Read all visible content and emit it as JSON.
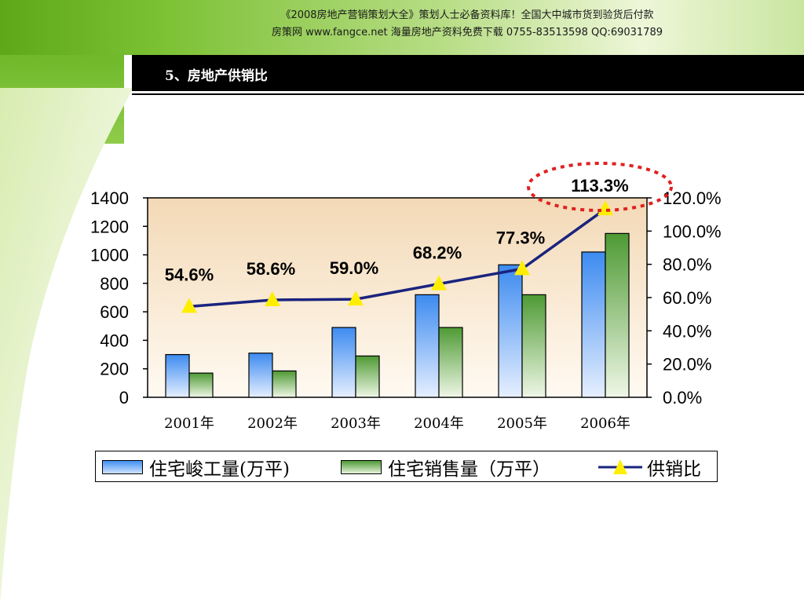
{
  "header": {
    "line1": "《2008房地产营销策划大全》策划人士必备资料库！全国大中城市货到验货后付款",
    "line2": "房策网 www.fangce.net 海量房地产资料免费下载  0755-83513598  QQ:69031789"
  },
  "slide": {
    "title": "5、房地产供销比"
  },
  "chart_data": {
    "type": "bar",
    "categories": [
      "2001年",
      "2002年",
      "2003年",
      "2004年",
      "2005年",
      "2006年"
    ],
    "series": [
      {
        "name": "住宅峻工量(万平)",
        "type": "bar",
        "axis": "left",
        "values": [
          300,
          310,
          490,
          720,
          930,
          1020
        ]
      },
      {
        "name": "住宅销售量（万平）",
        "type": "bar",
        "axis": "left",
        "values": [
          170,
          185,
          290,
          490,
          720,
          1150
        ]
      },
      {
        "name": "供销比",
        "type": "line",
        "axis": "right",
        "values": [
          0.546,
          0.586,
          0.59,
          0.682,
          0.773,
          1.133
        ],
        "data_labels": [
          "54.6%",
          "58.6%",
          "59.0%",
          "68.2%",
          "77.3%",
          "113.3%"
        ]
      }
    ],
    "left_axis": {
      "ylim": [
        0,
        1400
      ],
      "ticks": [
        "0",
        "200",
        "400",
        "600",
        "800",
        "1000",
        "1200",
        "1400"
      ]
    },
    "right_axis": {
      "ylim": [
        0,
        1.2
      ],
      "ticks": [
        "0.0%",
        "20.0%",
        "40.0%",
        "60.0%",
        "80.0%",
        "100.0%",
        "120.0%"
      ]
    },
    "legend_position": "bottom",
    "highlight": "113.3%",
    "colors": {
      "bar1": "#4a97f2",
      "bar2": "#5aa23e",
      "line": "#1a237e",
      "marker": "#ffee00",
      "highlight": "#e02020"
    }
  }
}
